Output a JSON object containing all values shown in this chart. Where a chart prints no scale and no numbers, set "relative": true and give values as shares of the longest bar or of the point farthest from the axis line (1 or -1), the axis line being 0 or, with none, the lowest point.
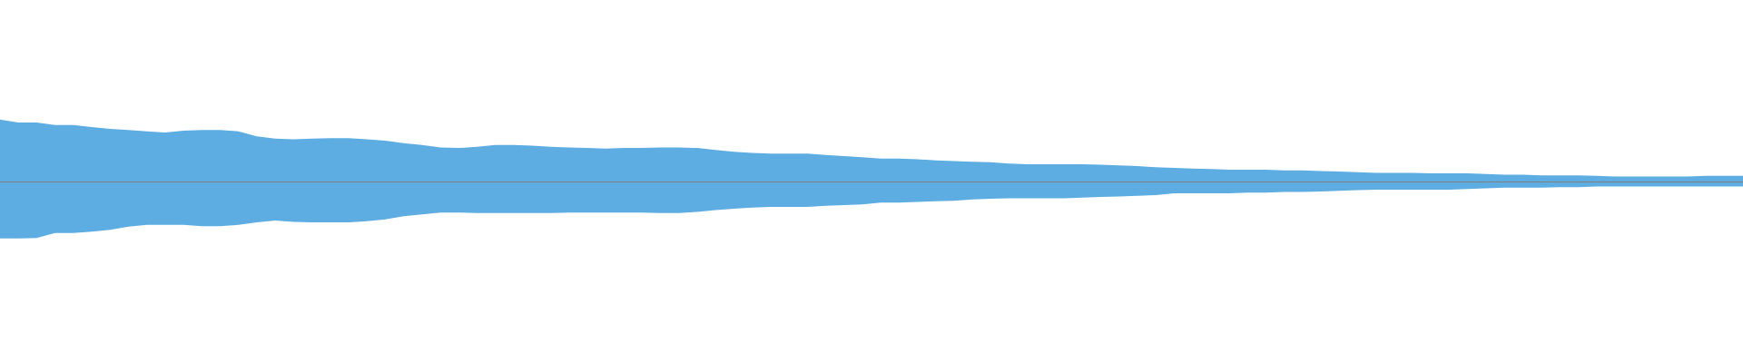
{
  "chart_data": {
    "type": "area",
    "relative": true,
    "categories": [
      null,
      null,
      null,
      null,
      null,
      null,
      null,
      null,
      null,
      null,
      null,
      null,
      null,
      null,
      null,
      null,
      null,
      null,
      null,
      null,
      null,
      null,
      null,
      null,
      null,
      null,
      null,
      null,
      null,
      null,
      null,
      null,
      null,
      null,
      null,
      null,
      null,
      null,
      null,
      null,
      null,
      null,
      null,
      null,
      null,
      null,
      null,
      null,
      null,
      null,
      null,
      null,
      null,
      null,
      null,
      null,
      null,
      null,
      null,
      null,
      null,
      null,
      null,
      null,
      null,
      null,
      null,
      null,
      null,
      null,
      null,
      null,
      null,
      null,
      null,
      null,
      null,
      null,
      null,
      null,
      null,
      null,
      null,
      null,
      null,
      null,
      null,
      null,
      null,
      null,
      null,
      null,
      null,
      null,
      null,
      null
    ],
    "series": [
      {
        "color": "#5dade2",
        "values": [
          1,
          0.95,
          0.95,
          0.91,
          0.91,
          0.88,
          0.85,
          0.83,
          0.81,
          0.79,
          0.82,
          0.83,
          0.83,
          0.81,
          0.73,
          0.69,
          0.68,
          0.69,
          0.7,
          0.7,
          0.68,
          0.66,
          0.62,
          0.59,
          0.55,
          0.54,
          0.56,
          0.59,
          0.59,
          0.58,
          0.56,
          0.55,
          0.54,
          0.53,
          0.54,
          0.54,
          0.55,
          0.55,
          0.54,
          0.51,
          0.48,
          0.46,
          0.45,
          0.45,
          0.45,
          0.43,
          0.41,
          0.39,
          0.37,
          0.37,
          0.36,
          0.34,
          0.33,
          0.32,
          0.31,
          0.29,
          0.28,
          0.28,
          0.28,
          0.28,
          0.27,
          0.26,
          0.25,
          0.23,
          0.22,
          0.21,
          0.2,
          0.19,
          0.19,
          0.19,
          0.18,
          0.18,
          0.17,
          0.16,
          0.15,
          0.14,
          0.14,
          0.14,
          0.13,
          0.13,
          0.13,
          0.12,
          0.11,
          0.11,
          0.1,
          0.1,
          0.1,
          0.09,
          0.08,
          0.08,
          0.08,
          0.08,
          0.08,
          0.09,
          0.09,
          0.09
        ]
      },
      {
        "color": "#5dade2",
        "values": [
          -0.92,
          -0.92,
          -0.91,
          -0.83,
          -0.83,
          -0.81,
          -0.78,
          -0.73,
          -0.7,
          -0.7,
          -0.7,
          -0.72,
          -0.72,
          -0.7,
          -0.66,
          -0.63,
          -0.65,
          -0.66,
          -0.66,
          -0.66,
          -0.64,
          -0.61,
          -0.56,
          -0.53,
          -0.5,
          -0.5,
          -0.51,
          -0.51,
          -0.51,
          -0.51,
          -0.51,
          -0.5,
          -0.5,
          -0.5,
          -0.5,
          -0.5,
          -0.51,
          -0.51,
          -0.49,
          -0.46,
          -0.44,
          -0.42,
          -0.41,
          -0.41,
          -0.41,
          -0.39,
          -0.38,
          -0.37,
          -0.34,
          -0.34,
          -0.33,
          -0.32,
          -0.31,
          -0.29,
          -0.28,
          -0.27,
          -0.27,
          -0.27,
          -0.27,
          -0.26,
          -0.25,
          -0.24,
          -0.23,
          -0.22,
          -0.19,
          -0.19,
          -0.19,
          -0.19,
          -0.18,
          -0.18,
          -0.17,
          -0.17,
          -0.16,
          -0.15,
          -0.14,
          -0.13,
          -0.13,
          -0.13,
          -0.13,
          -0.13,
          -0.12,
          -0.11,
          -0.1,
          -0.1,
          -0.1,
          -0.09,
          -0.09,
          -0.08,
          -0.08,
          -0.08,
          -0.08,
          -0.08,
          -0.08,
          -0.08,
          -0.08,
          -0.08
        ]
      }
    ]
  }
}
